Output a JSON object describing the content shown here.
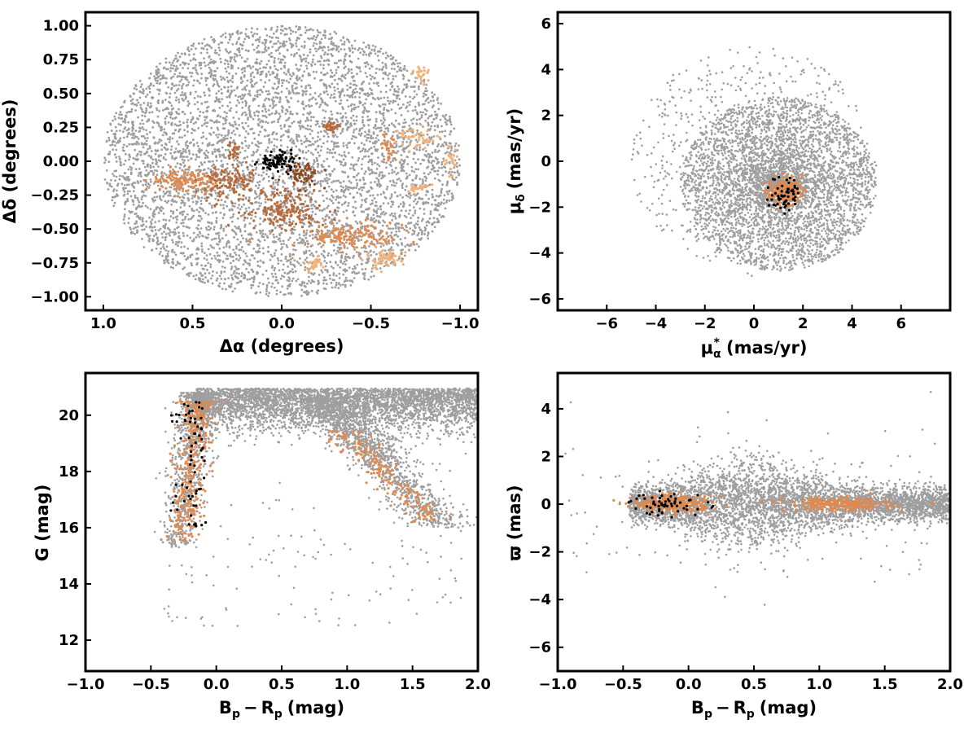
{
  "colors": {
    "field": "#9e9e9e",
    "black": "#000000",
    "orange": "#e0894f",
    "light_orange": "#f0b27a",
    "brown": "#b86a3c",
    "dark_brown": "#8c4a22"
  },
  "chart_data": [
    {
      "id": "sky",
      "type": "scatter",
      "xlabel_main": "Δα (degrees)",
      "ylabel_main": "Δδ (degrees)",
      "xlim": [
        1.1,
        -1.1
      ],
      "ylim": [
        -1.1,
        1.1
      ],
      "xticks": [
        1.0,
        0.5,
        0.0,
        -0.5,
        -1.0
      ],
      "xtick_labels": [
        "1.0",
        "0.5",
        "0.0",
        "−0.5",
        "−1.0"
      ],
      "yticks": [
        1.0,
        0.75,
        0.5,
        0.25,
        0.0,
        -0.25,
        -0.5,
        -0.75,
        -1.0
      ],
      "ytick_labels": [
        "1.00",
        "0.75",
        "0.50",
        "0.25",
        "0.00",
        "−0.25",
        "−0.50",
        "−0.75",
        "−1.00"
      ],
      "background_field": {
        "shape": "disk",
        "center": [
          0.0,
          0.0
        ],
        "radius": [
          1.0,
          1.0
        ],
        "color_key": "field"
      },
      "groups": [
        {
          "color_key": "black",
          "center": [
            0.02,
            0.0
          ],
          "spread": [
            0.05,
            0.04
          ],
          "count": 90
        },
        {
          "color_key": "orange",
          "center": [
            0.55,
            -0.15
          ],
          "spread": [
            0.09,
            0.04
          ],
          "count": 140
        },
        {
          "color_key": "brown",
          "center": [
            0.3,
            -0.17
          ],
          "spread": [
            0.08,
            0.08
          ],
          "count": 120
        },
        {
          "color_key": "brown",
          "center": [
            -0.02,
            -0.35
          ],
          "spread": [
            0.1,
            0.07
          ],
          "count": 180
        },
        {
          "color_key": "dark_brown",
          "center": [
            -0.12,
            -0.1
          ],
          "spread": [
            0.05,
            0.05
          ],
          "count": 70
        },
        {
          "color_key": "brown",
          "center": [
            -0.28,
            0.25
          ],
          "spread": [
            0.02,
            0.02
          ],
          "count": 40
        },
        {
          "color_key": "orange",
          "center": [
            -0.38,
            -0.55
          ],
          "spread": [
            0.13,
            0.05
          ],
          "count": 160
        },
        {
          "color_key": "light_orange",
          "center": [
            -0.58,
            -0.72
          ],
          "spread": [
            0.05,
            0.04
          ],
          "count": 60
        },
        {
          "color_key": "light_orange",
          "center": [
            -0.78,
            -0.2
          ],
          "spread": [
            0.03,
            0.02
          ],
          "count": 25
        },
        {
          "color_key": "orange",
          "center": [
            -0.6,
            0.1
          ],
          "spread": [
            0.02,
            0.05
          ],
          "count": 30
        },
        {
          "color_key": "light_orange",
          "center": [
            -0.75,
            0.17
          ],
          "spread": [
            0.06,
            0.04
          ],
          "count": 45
        },
        {
          "color_key": "light_orange",
          "center": [
            -0.78,
            0.63
          ],
          "spread": [
            0.02,
            0.03
          ],
          "count": 25
        },
        {
          "color_key": "light_orange",
          "center": [
            -0.95,
            0.0
          ],
          "spread": [
            0.02,
            0.05
          ],
          "count": 25
        },
        {
          "color_key": "brown",
          "center": [
            0.27,
            0.08
          ],
          "spread": [
            0.02,
            0.03
          ],
          "count": 25
        },
        {
          "color_key": "light_orange",
          "center": [
            -0.18,
            -0.75
          ],
          "spread": [
            0.03,
            0.03
          ],
          "count": 30
        }
      ]
    },
    {
      "id": "pm",
      "type": "scatter",
      "xlabel_main": "μ",
      "xlabel_sub": "α",
      "xlabel_sup": "*",
      "xlabel_unit": "(mas/yr)",
      "ylabel_main": "μ",
      "ylabel_sub": "δ",
      "ylabel_unit": "(mas/yr)",
      "xlim": [
        -8,
        8
      ],
      "ylim": [
        -6.5,
        6.5
      ],
      "xticks": [
        -6,
        -4,
        -2,
        0,
        2,
        4,
        6
      ],
      "xtick_labels": [
        "−6",
        "−4",
        "−2",
        "0",
        "2",
        "4",
        "6"
      ],
      "yticks": [
        6,
        4,
        2,
        0,
        -2,
        -4,
        -6
      ],
      "ytick_labels": [
        "6",
        "4",
        "2",
        "0",
        "−2",
        "−4",
        "−6"
      ],
      "background_field": {
        "shape": "disk",
        "center": [
          1.0,
          -1.0
        ],
        "radius": [
          4.0,
          3.8
        ],
        "color_key": "field"
      },
      "background_halo": {
        "shape": "disk",
        "center": [
          0.0,
          0.0
        ],
        "radius": [
          5.0,
          5.0
        ],
        "color_key": "field",
        "count": 700
      },
      "groups": [
        {
          "color_key": "orange",
          "center": [
            1.25,
            -1.3
          ],
          "spread": [
            0.35,
            0.3
          ],
          "count": 200
        },
        {
          "color_key": "black",
          "center": [
            1.25,
            -1.4
          ],
          "spread": [
            0.3,
            0.4
          ],
          "count": 60
        }
      ]
    },
    {
      "id": "cmd",
      "type": "scatter",
      "xlabel_main": "B",
      "xlabel_sub": "p",
      "xlabel_minus": "−",
      "xlabel_main2": "R",
      "xlabel_sub2": "p",
      "xlabel_unit": "(mag)",
      "ylabel_main": "G (mag)",
      "xlim": [
        -1.0,
        2.0
      ],
      "ylim": [
        10.9,
        21.5
      ],
      "xticks": [
        -1.0,
        -0.5,
        0.0,
        0.5,
        1.0,
        1.5,
        2.0
      ],
      "xtick_labels": [
        "−1.0",
        "−0.5",
        "0.0",
        "0.5",
        "1.0",
        "1.5",
        "2.0"
      ],
      "yticks": [
        20,
        18,
        16,
        14,
        12
      ],
      "ytick_labels": [
        "20",
        "18",
        "16",
        "14",
        "12"
      ]
    },
    {
      "id": "plx",
      "type": "scatter",
      "xlabel_main": "B",
      "xlabel_sub": "p",
      "xlabel_minus": "−",
      "xlabel_main2": "R",
      "xlabel_sub2": "p",
      "xlabel_unit": "(mag)",
      "ylabel_main": "ϖ (mas)",
      "xlim": [
        -1.0,
        2.0
      ],
      "ylim": [
        -7.0,
        5.5
      ],
      "xticks": [
        -1.0,
        -0.5,
        0.0,
        0.5,
        1.0,
        1.5,
        2.0
      ],
      "xtick_labels": [
        "−1.0",
        "−0.5",
        "0.0",
        "0.5",
        "1.0",
        "1.5",
        "2.0"
      ],
      "yticks": [
        4,
        2,
        0,
        -2,
        -4,
        -6
      ],
      "ytick_labels": [
        "4",
        "2",
        "0",
        "−2",
        "−4",
        "−6"
      ]
    }
  ]
}
